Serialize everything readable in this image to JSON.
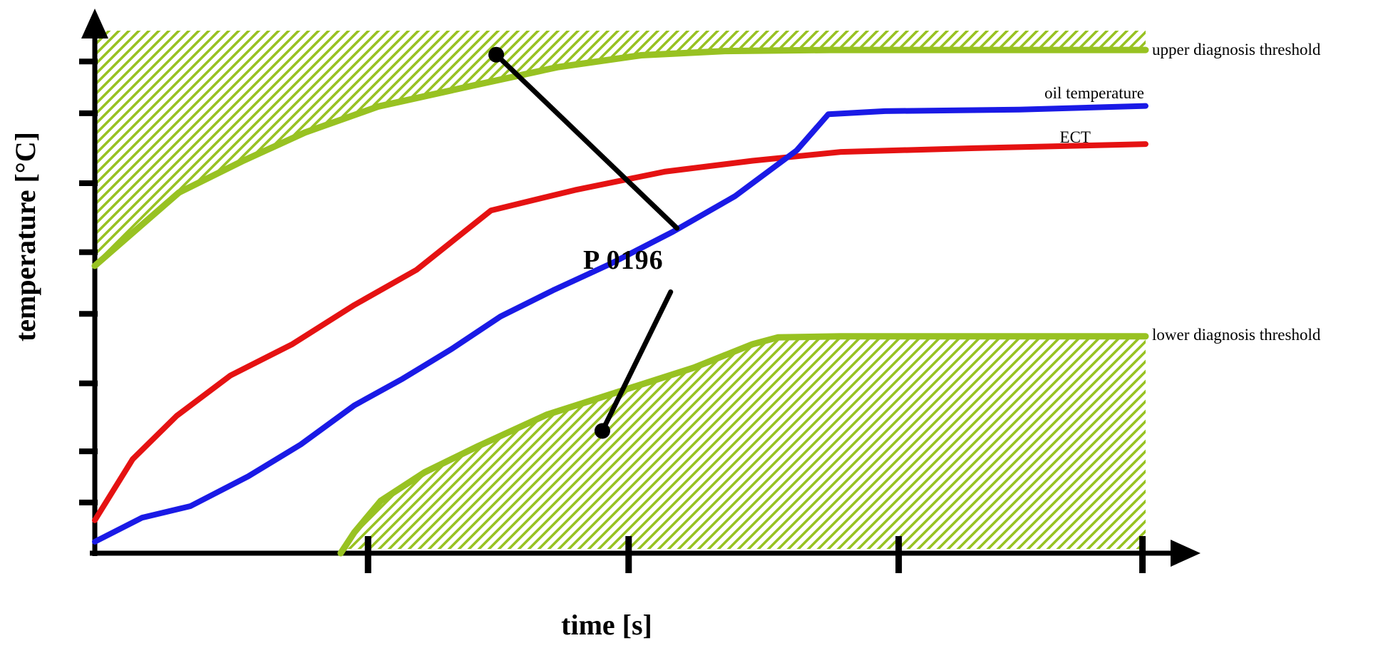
{
  "page": {
    "background": "#ffffff"
  },
  "chart_data": {
    "type": "line",
    "title": "",
    "xlabel": "time [s]",
    "ylabel": "temperature [°C]",
    "grid": false,
    "legend": "inline-labels-at-right",
    "x_axis": {
      "label": "time [s]",
      "numeric_tick_labels": false,
      "tick_positions_pct": [
        26,
        50.8,
        76.5,
        99.7
      ]
    },
    "y_axis": {
      "label": "temperature [°C]",
      "numeric_tick_labels": false,
      "tick_positions_pct": [
        9.7,
        19.5,
        32.5,
        45.8,
        57.6,
        70.8,
        84.2,
        94.1
      ]
    },
    "series": [
      {
        "id": "upper_threshold",
        "name": "upper diagnosis threshold",
        "color": "#98c222",
        "stroke_width": 9,
        "hatch": "above",
        "points": [
          [
            0,
            55
          ],
          [
            4,
            62
          ],
          [
            8,
            69
          ],
          [
            14,
            75
          ],
          [
            20,
            80.5
          ],
          [
            27,
            85.5
          ],
          [
            36,
            89.5
          ],
          [
            44,
            93
          ],
          [
            52,
            95.3
          ],
          [
            60,
            96.1
          ],
          [
            70,
            96.3
          ],
          [
            100,
            96.3
          ]
        ]
      },
      {
        "id": "lower_threshold",
        "name": "lower diagnosis threshold",
        "color": "#98c222",
        "stroke_width": 9,
        "hatch": "below",
        "points": [
          [
            23.4,
            0
          ],
          [
            24.7,
            4
          ],
          [
            27.2,
            10
          ],
          [
            31.4,
            15.5
          ],
          [
            36.5,
            20.5
          ],
          [
            43,
            26.5
          ],
          [
            50,
            31
          ],
          [
            57,
            35.5
          ],
          [
            62.6,
            40
          ],
          [
            65,
            41.3
          ],
          [
            71,
            41.5
          ],
          [
            100,
            41.5
          ]
        ]
      },
      {
        "id": "ect",
        "name": "ECT",
        "color": "#e51212",
        "stroke_width": 8,
        "points": [
          [
            0,
            6.3
          ],
          [
            3.6,
            18
          ],
          [
            7.8,
            26.3
          ],
          [
            12.9,
            34
          ],
          [
            18.8,
            40
          ],
          [
            24.7,
            47.5
          ],
          [
            30.6,
            54.2
          ],
          [
            37.7,
            65.6
          ],
          [
            45.7,
            69.5
          ],
          [
            54.2,
            73
          ],
          [
            62.6,
            75.1
          ],
          [
            71,
            76.8
          ],
          [
            83.7,
            77.5
          ],
          [
            100,
            78.3
          ]
        ]
      },
      {
        "id": "oil_temperature",
        "name": "oil temperature",
        "color": "#1a1ae6",
        "stroke_width": 8,
        "points": [
          [
            0,
            2.2
          ],
          [
            4.5,
            6.8
          ],
          [
            9.1,
            9
          ],
          [
            14.6,
            14.7
          ],
          [
            19.6,
            20.8
          ],
          [
            24.7,
            28.3
          ],
          [
            29.3,
            33.4
          ],
          [
            33.9,
            39
          ],
          [
            38.6,
            45.3
          ],
          [
            43.6,
            50.3
          ],
          [
            49.1,
            55.4
          ],
          [
            55,
            61.5
          ],
          [
            60.9,
            68.3
          ],
          [
            66.8,
            77.1
          ],
          [
            69.8,
            84
          ],
          [
            75.2,
            84.6
          ],
          [
            88,
            84.9
          ],
          [
            100,
            85.6
          ]
        ]
      }
    ],
    "hatch_regions": {
      "pattern": "diagonal-stripes",
      "color": "#98c222",
      "upper_top_pct": 100,
      "lower_bottom_pct": 0.8
    },
    "annotations": [
      {
        "text": "P 0196",
        "callouts": [
          {
            "dot": [
              38.2,
              95.4
            ],
            "end": [
              55.4,
              62.2
            ],
            "points_to": "upper diagnosis threshold"
          },
          {
            "dot": [
              48.3,
              23.4
            ],
            "end": [
              54.8,
              50.0
            ],
            "points_to": "lower diagnosis threshold"
          }
        ]
      }
    ]
  }
}
